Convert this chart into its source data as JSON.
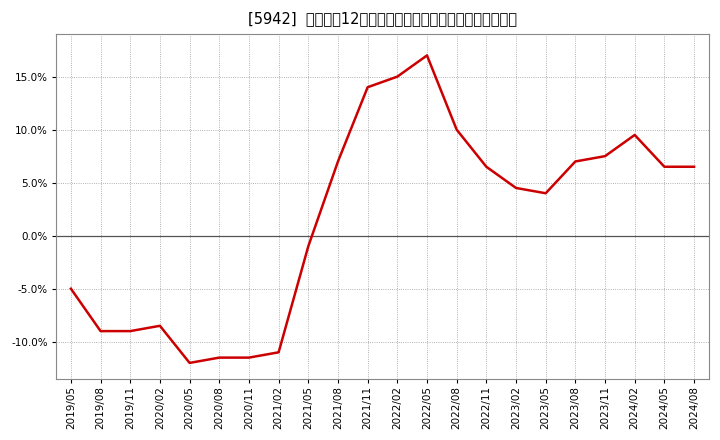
{
  "title": "[5942]  売上高の12か月移動合計の対前年同期増減率の推移",
  "line_color": "#cc0000",
  "bg_color": "#ffffff",
  "plot_bg_color": "#ffffff",
  "grid_color": "#999999",
  "zero_line_color": "#555555",
  "dates": [
    "2019/05",
    "2019/08",
    "2019/11",
    "2020/02",
    "2020/05",
    "2020/08",
    "2020/11",
    "2021/02",
    "2021/05",
    "2021/08",
    "2021/11",
    "2022/02",
    "2022/05",
    "2022/08",
    "2022/11",
    "2023/02",
    "2023/05",
    "2023/08",
    "2023/11",
    "2024/02",
    "2024/05",
    "2024/08"
  ],
  "values": [
    -5.0,
    -9.0,
    -9.0,
    -8.5,
    -12.0,
    -11.5,
    -11.5,
    -11.0,
    -1.0,
    7.0,
    14.0,
    15.0,
    17.0,
    10.0,
    6.5,
    4.5,
    4.0,
    7.0,
    7.5,
    9.5,
    6.5,
    6.5
  ],
  "yticks": [
    -10.0,
    -5.0,
    0.0,
    5.0,
    10.0,
    15.0
  ],
  "ylim": [
    -13.5,
    19.0
  ],
  "figsize": [
    7.2,
    4.4
  ],
  "dpi": 100,
  "title_fontsize": 10.5,
  "tick_fontsize": 7.5,
  "linewidth": 1.8
}
